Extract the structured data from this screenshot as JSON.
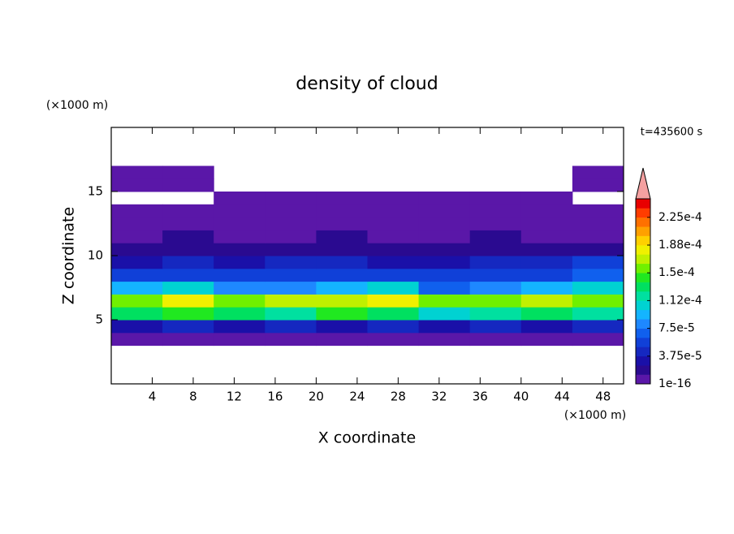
{
  "chart_data": {
    "type": "contour",
    "title": "density of cloud",
    "x_label": "X coordinate",
    "y_label": "Z coordinate",
    "x_unit_label": "(×1000 m)",
    "y_unit_label": "(×1000 m)",
    "annotation": "t=435600 s",
    "xlim": [
      0,
      50
    ],
    "xticks": [
      4,
      8,
      12,
      16,
      20,
      24,
      28,
      32,
      36,
      40,
      44,
      48
    ],
    "ylim": [
      0,
      20
    ],
    "yticks": [
      5,
      10,
      15
    ],
    "x": [
      2.5,
      7.5,
      12.5,
      17.5,
      22.5,
      27.5,
      32.5,
      37.5,
      42.5,
      47.5
    ],
    "y": [
      0.5,
      1.5,
      2.5,
      3.5,
      4.5,
      5.5,
      6.5,
      7.5,
      8.5,
      9.5,
      10.5,
      11.5,
      12.5,
      13.5,
      14.5,
      15.5,
      16.5,
      17.5,
      18.5,
      19.5
    ],
    "z": [
      [
        null,
        null,
        null,
        null,
        null,
        null,
        null,
        null,
        null,
        null
      ],
      [
        null,
        null,
        null,
        null,
        null,
        null,
        null,
        null,
        null,
        null
      ],
      [
        null,
        null,
        null,
        null,
        null,
        null,
        null,
        null,
        null,
        null
      ],
      [
        1e-05,
        1e-05,
        1e-05,
        1e-05,
        1e-05,
        1e-05,
        1e-05,
        1e-05,
        1e-05,
        1e-05
      ],
      [
        3e-05,
        4e-05,
        3e-05,
        4e-05,
        3e-05,
        4e-05,
        3e-05,
        4e-05,
        3e-05,
        4e-05
      ],
      [
        0.00013,
        0.00014,
        0.00013,
        0.00012,
        0.00014,
        0.00013,
        0.00011,
        0.00012,
        0.00013,
        0.00012
      ],
      [
        0.00016,
        0.00018,
        0.00016,
        0.00017,
        0.00017,
        0.00018,
        0.00015,
        0.00016,
        0.00017,
        0.00016
      ],
      [
        9e-05,
        0.0001,
        8e-05,
        8e-05,
        9e-05,
        0.00011,
        7e-05,
        8e-05,
        9e-05,
        0.0001
      ],
      [
        5e-05,
        6e-05,
        5e-05,
        6e-05,
        5e-05,
        6e-05,
        5e-05,
        5e-05,
        6e-05,
        7e-05
      ],
      [
        3e-05,
        4e-05,
        3e-05,
        4e-05,
        4e-05,
        3e-05,
        3e-05,
        4e-05,
        4e-05,
        5e-05
      ],
      [
        2e-05,
        2e-05,
        1.5e-05,
        2e-05,
        2e-05,
        1.5e-05,
        2e-05,
        1.5e-05,
        2e-05,
        2e-05
      ],
      [
        1e-05,
        1.5e-05,
        1e-05,
        1e-05,
        1.5e-05,
        1e-05,
        1e-05,
        1.5e-05,
        1e-05,
        1e-05
      ],
      [
        5e-06,
        5e-06,
        5e-06,
        5e-06,
        5e-06,
        5e-06,
        5e-06,
        5e-06,
        5e-06,
        5e-06
      ],
      [
        5e-06,
        5e-06,
        5e-06,
        5e-06,
        5e-06,
        5e-06,
        5e-06,
        5e-06,
        5e-06,
        5e-06
      ],
      [
        null,
        null,
        5e-06,
        5e-06,
        5e-06,
        5e-06,
        5e-06,
        5e-06,
        5e-06,
        null
      ],
      [
        5e-06,
        5e-06,
        null,
        null,
        null,
        null,
        null,
        null,
        null,
        5e-06
      ],
      [
        5e-06,
        5e-06,
        null,
        null,
        null,
        null,
        null,
        null,
        null,
        5e-06
      ],
      [
        null,
        null,
        null,
        null,
        null,
        null,
        null,
        null,
        null,
        null
      ],
      [
        null,
        null,
        null,
        null,
        null,
        null,
        null,
        null,
        null,
        null
      ],
      [
        null,
        null,
        null,
        null,
        null,
        null,
        null,
        null,
        null,
        null
      ]
    ],
    "colorbar": {
      "levels": [
        1e-16,
        1.25e-05,
        2.5e-05,
        3.75e-05,
        5e-05,
        6.25e-05,
        7.5e-05,
        8.75e-05,
        0.0001,
        0.0001125,
        0.000125,
        0.0001375,
        0.00015,
        0.0001625,
        0.000175,
        0.0001875,
        0.0002,
        0.0002125,
        0.000225,
        0.0002375,
        0.00025
      ],
      "colors": [
        "#5a17a8",
        "#2a0a90",
        "#1a10a8",
        "#1528c0",
        "#1040d8",
        "#1060ee",
        "#1e88ff",
        "#14b4ff",
        "#00d2d2",
        "#00e0a0",
        "#00e060",
        "#20e820",
        "#70f000",
        "#c0f000",
        "#f0f000",
        "#ffd000",
        "#ffa000",
        "#ff7000",
        "#ff3c00",
        "#e80000"
      ],
      "extend_color": "#f4a0a0",
      "ticks": [
        {
          "value": 1e-16,
          "label": "1e-16"
        },
        {
          "value": 3.75e-05,
          "label": "3.75e-5"
        },
        {
          "value": 7.5e-05,
          "label": "7.5e-5"
        },
        {
          "value": 0.0001125,
          "label": "1.12e-4"
        },
        {
          "value": 0.00015,
          "label": "1.5e-4"
        },
        {
          "value": 0.0001875,
          "label": "1.88e-4"
        },
        {
          "value": 0.000225,
          "label": "2.25e-4"
        }
      ]
    }
  }
}
